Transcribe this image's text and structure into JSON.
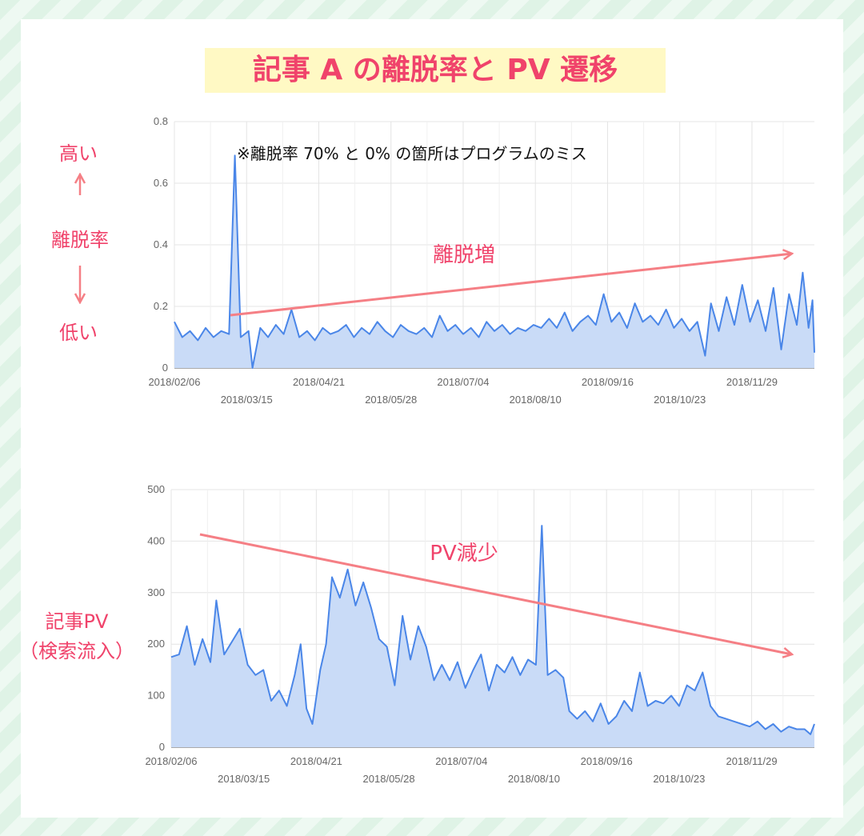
{
  "title": "記事 A の離脱率と PV 遷移",
  "annotations": {
    "note": "※離脱率 70% と 0% の箇所はプログラムのミス",
    "bounce_trend": "離脱増",
    "pv_trend": "PV減少"
  },
  "side_labels": {
    "high": "高い",
    "metric": "離脱率",
    "low": "低い",
    "pv_line1": "記事PV",
    "pv_line2": "（検索流入）"
  },
  "colors": {
    "line": "#4a86e8",
    "fill": "#c9dbf7",
    "accent": "#f0436b",
    "arrow": "#f57f85",
    "grid": "#e4e4e4"
  },
  "chart_data": [
    {
      "type": "area",
      "x_ticks_row1": [
        "2018/02/06",
        "2018/04/21",
        "2018/07/04",
        "2018/09/16",
        "2018/11/29"
      ],
      "x_ticks_row2": [
        "2018/03/15",
        "2018/05/28",
        "2018/08/10",
        "2018/10/23"
      ],
      "x_range": [
        "2018/02/06",
        "2018/12/31"
      ],
      "ylim": [
        0,
        0.8
      ],
      "y_ticks": [
        "0",
        "0.2",
        "0.4",
        "0.6",
        "0.8"
      ],
      "grid": true,
      "series": [
        {
          "points": [
            [
              "2018/02/06",
              0.15
            ],
            [
              "2018/02/10",
              0.1
            ],
            [
              "2018/02/14",
              0.12
            ],
            [
              "2018/02/18",
              0.09
            ],
            [
              "2018/02/22",
              0.13
            ],
            [
              "2018/02/26",
              0.1
            ],
            [
              "2018/03/02",
              0.12
            ],
            [
              "2018/03/06",
              0.11
            ],
            [
              "2018/03/09",
              0.69
            ],
            [
              "2018/03/12",
              0.1
            ],
            [
              "2018/03/16",
              0.12
            ],
            [
              "2018/03/18",
              0.0
            ],
            [
              "2018/03/22",
              0.13
            ],
            [
              "2018/03/26",
              0.1
            ],
            [
              "2018/03/30",
              0.14
            ],
            [
              "2018/04/03",
              0.11
            ],
            [
              "2018/04/07",
              0.19
            ],
            [
              "2018/04/11",
              0.1
            ],
            [
              "2018/04/15",
              0.12
            ],
            [
              "2018/04/19",
              0.09
            ],
            [
              "2018/04/23",
              0.13
            ],
            [
              "2018/04/27",
              0.11
            ],
            [
              "2018/05/01",
              0.12
            ],
            [
              "2018/05/05",
              0.14
            ],
            [
              "2018/05/09",
              0.1
            ],
            [
              "2018/05/13",
              0.13
            ],
            [
              "2018/05/17",
              0.11
            ],
            [
              "2018/05/21",
              0.15
            ],
            [
              "2018/05/25",
              0.12
            ],
            [
              "2018/05/29",
              0.1
            ],
            [
              "2018/06/02",
              0.14
            ],
            [
              "2018/06/06",
              0.12
            ],
            [
              "2018/06/10",
              0.11
            ],
            [
              "2018/06/14",
              0.13
            ],
            [
              "2018/06/18",
              0.1
            ],
            [
              "2018/06/22",
              0.17
            ],
            [
              "2018/06/26",
              0.12
            ],
            [
              "2018/06/30",
              0.14
            ],
            [
              "2018/07/04",
              0.11
            ],
            [
              "2018/07/08",
              0.13
            ],
            [
              "2018/07/12",
              0.1
            ],
            [
              "2018/07/16",
              0.15
            ],
            [
              "2018/07/20",
              0.12
            ],
            [
              "2018/07/24",
              0.14
            ],
            [
              "2018/07/28",
              0.11
            ],
            [
              "2018/08/01",
              0.13
            ],
            [
              "2018/08/05",
              0.12
            ],
            [
              "2018/08/09",
              0.14
            ],
            [
              "2018/08/13",
              0.13
            ],
            [
              "2018/08/17",
              0.16
            ],
            [
              "2018/08/21",
              0.13
            ],
            [
              "2018/08/25",
              0.18
            ],
            [
              "2018/08/29",
              0.12
            ],
            [
              "2018/09/02",
              0.15
            ],
            [
              "2018/09/06",
              0.17
            ],
            [
              "2018/09/10",
              0.14
            ],
            [
              "2018/09/14",
              0.24
            ],
            [
              "2018/09/18",
              0.15
            ],
            [
              "2018/09/22",
              0.18
            ],
            [
              "2018/09/26",
              0.13
            ],
            [
              "2018/09/30",
              0.21
            ],
            [
              "2018/10/04",
              0.15
            ],
            [
              "2018/10/08",
              0.17
            ],
            [
              "2018/10/12",
              0.14
            ],
            [
              "2018/10/16",
              0.19
            ],
            [
              "2018/10/20",
              0.13
            ],
            [
              "2018/10/24",
              0.16
            ],
            [
              "2018/10/28",
              0.12
            ],
            [
              "2018/11/01",
              0.15
            ],
            [
              "2018/11/05",
              0.04
            ],
            [
              "2018/11/08",
              0.21
            ],
            [
              "2018/11/12",
              0.12
            ],
            [
              "2018/11/16",
              0.23
            ],
            [
              "2018/11/20",
              0.14
            ],
            [
              "2018/11/24",
              0.27
            ],
            [
              "2018/11/28",
              0.15
            ],
            [
              "2018/12/02",
              0.22
            ],
            [
              "2018/12/06",
              0.12
            ],
            [
              "2018/12/10",
              0.26
            ],
            [
              "2018/12/14",
              0.06
            ],
            [
              "2018/12/18",
              0.24
            ],
            [
              "2018/12/22",
              0.14
            ],
            [
              "2018/12/25",
              0.31
            ],
            [
              "2018/12/28",
              0.13
            ],
            [
              "2018/12/30",
              0.22
            ],
            [
              "2018/12/31",
              0.05
            ]
          ]
        }
      ]
    },
    {
      "type": "area",
      "x_ticks_row1": [
        "2018/02/06",
        "2018/04/21",
        "2018/07/04",
        "2018/09/16",
        "2018/11/29"
      ],
      "x_ticks_row2": [
        "2018/03/15",
        "2018/05/28",
        "2018/08/10",
        "2018/10/23"
      ],
      "x_range": [
        "2018/02/06",
        "2018/12/31"
      ],
      "ylim": [
        0,
        500
      ],
      "y_ticks": [
        "0",
        "100",
        "200",
        "300",
        "400",
        "500"
      ],
      "grid": true,
      "series": [
        {
          "points": [
            [
              "2018/02/06",
              175
            ],
            [
              "2018/02/10",
              180
            ],
            [
              "2018/02/14",
              235
            ],
            [
              "2018/02/18",
              160
            ],
            [
              "2018/02/22",
              210
            ],
            [
              "2018/02/26",
              165
            ],
            [
              "2018/03/01",
              285
            ],
            [
              "2018/03/05",
              180
            ],
            [
              "2018/03/09",
              205
            ],
            [
              "2018/03/13",
              230
            ],
            [
              "2018/03/17",
              160
            ],
            [
              "2018/03/21",
              140
            ],
            [
              "2018/03/25",
              150
            ],
            [
              "2018/03/29",
              90
            ],
            [
              "2018/04/02",
              110
            ],
            [
              "2018/04/06",
              80
            ],
            [
              "2018/04/10",
              140
            ],
            [
              "2018/04/13",
              200
            ],
            [
              "2018/04/16",
              75
            ],
            [
              "2018/04/19",
              45
            ],
            [
              "2018/04/23",
              150
            ],
            [
              "2018/04/26",
              200
            ],
            [
              "2018/04/29",
              330
            ],
            [
              "2018/05/03",
              290
            ],
            [
              "2018/05/07",
              345
            ],
            [
              "2018/05/11",
              275
            ],
            [
              "2018/05/15",
              320
            ],
            [
              "2018/05/19",
              270
            ],
            [
              "2018/05/23",
              210
            ],
            [
              "2018/05/27",
              195
            ],
            [
              "2018/05/31",
              120
            ],
            [
              "2018/06/04",
              255
            ],
            [
              "2018/06/08",
              170
            ],
            [
              "2018/06/12",
              235
            ],
            [
              "2018/06/16",
              195
            ],
            [
              "2018/06/20",
              130
            ],
            [
              "2018/06/24",
              160
            ],
            [
              "2018/06/28",
              130
            ],
            [
              "2018/07/02",
              165
            ],
            [
              "2018/07/06",
              115
            ],
            [
              "2018/07/10",
              150
            ],
            [
              "2018/07/14",
              180
            ],
            [
              "2018/07/18",
              110
            ],
            [
              "2018/07/22",
              160
            ],
            [
              "2018/07/26",
              145
            ],
            [
              "2018/07/30",
              175
            ],
            [
              "2018/08/03",
              140
            ],
            [
              "2018/08/07",
              170
            ],
            [
              "2018/08/11",
              160
            ],
            [
              "2018/08/14",
              430
            ],
            [
              "2018/08/17",
              140
            ],
            [
              "2018/08/21",
              150
            ],
            [
              "2018/08/25",
              135
            ],
            [
              "2018/08/28",
              70
            ],
            [
              "2018/09/01",
              55
            ],
            [
              "2018/09/05",
              70
            ],
            [
              "2018/09/09",
              50
            ],
            [
              "2018/09/13",
              85
            ],
            [
              "2018/09/17",
              45
            ],
            [
              "2018/09/21",
              60
            ],
            [
              "2018/09/25",
              90
            ],
            [
              "2018/09/29",
              70
            ],
            [
              "2018/10/03",
              145
            ],
            [
              "2018/10/07",
              80
            ],
            [
              "2018/10/11",
              90
            ],
            [
              "2018/10/15",
              85
            ],
            [
              "2018/10/19",
              100
            ],
            [
              "2018/10/23",
              80
            ],
            [
              "2018/10/27",
              120
            ],
            [
              "2018/10/31",
              110
            ],
            [
              "2018/11/04",
              145
            ],
            [
              "2018/11/08",
              80
            ],
            [
              "2018/11/12",
              60
            ],
            [
              "2018/11/16",
              55
            ],
            [
              "2018/11/20",
              50
            ],
            [
              "2018/11/24",
              45
            ],
            [
              "2018/11/28",
              40
            ],
            [
              "2018/12/02",
              50
            ],
            [
              "2018/12/06",
              35
            ],
            [
              "2018/12/10",
              45
            ],
            [
              "2018/12/14",
              30
            ],
            [
              "2018/12/18",
              40
            ],
            [
              "2018/12/22",
              35
            ],
            [
              "2018/12/26",
              35
            ],
            [
              "2018/12/29",
              25
            ],
            [
              "2018/12/31",
              45
            ]
          ]
        }
      ]
    }
  ]
}
